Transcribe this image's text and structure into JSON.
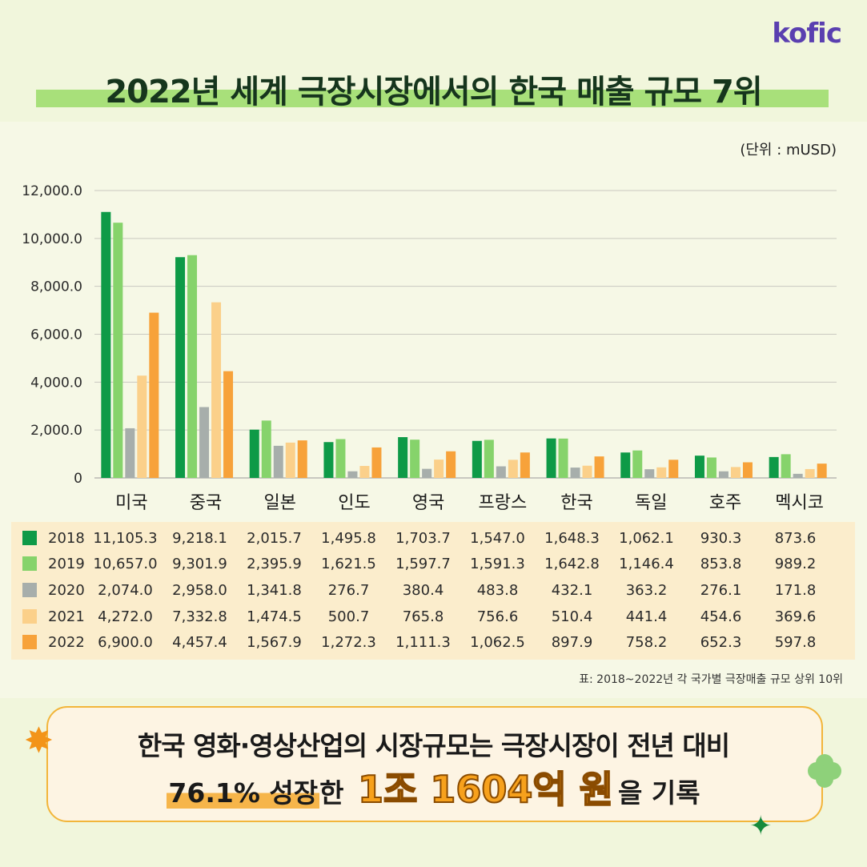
{
  "logo": "kofic",
  "title": "2022년 세계 극장시장에서의 한국 매출 규모 7위",
  "unit_label": "(단위 : mUSD)",
  "caption": "표: 2018~2022년 각 국가별 극장매출 규모 상위 10위",
  "callout": {
    "line1": "한국 영화·영상산업의 시장규모는 극장시장이 전년 대비",
    "highlight": "76.1% 성장",
    "mid": "한",
    "amount": "1조 1604억 원",
    "tail": "을 기록"
  },
  "icons": {
    "sparkle": "sparkle-icon",
    "clover": "clover-icon",
    "star": "four-point-star-icon"
  },
  "chart_data": {
    "type": "bar",
    "categories": [
      "미국",
      "중국",
      "일본",
      "인도",
      "영국",
      "프랑스",
      "한국",
      "독일",
      "호주",
      "멕시코"
    ],
    "series": [
      {
        "name": "2018",
        "color": "#0e9a47",
        "labels": [
          "11,105.3",
          "9,218.1",
          "2,015.7",
          "1,495.8",
          "1,703.7",
          "1,547.0",
          "1,648.3",
          "1,062.1",
          "930.3",
          "873.6"
        ],
        "values": [
          11105.3,
          9218.1,
          2015.7,
          1495.8,
          1703.7,
          1547.0,
          1648.3,
          1062.1,
          930.3,
          873.6
        ]
      },
      {
        "name": "2019",
        "color": "#86d36b",
        "labels": [
          "10,657.0",
          "9,301.9",
          "2,395.9",
          "1,621.5",
          "1,597.7",
          "1,591.3",
          "1,642.8",
          "1,146.4",
          "853.8",
          "989.2"
        ],
        "values": [
          10657.0,
          9301.9,
          2395.9,
          1621.5,
          1597.7,
          1591.3,
          1642.8,
          1146.4,
          853.8,
          989.2
        ]
      },
      {
        "name": "2020",
        "color": "#a7aeab",
        "labels": [
          "2,074.0",
          "2,958.0",
          "1,341.8",
          "276.7",
          "380.4",
          "483.8",
          "432.1",
          "363.2",
          "276.1",
          "171.8"
        ],
        "values": [
          2074.0,
          2958.0,
          1341.8,
          276.7,
          380.4,
          483.8,
          432.1,
          363.2,
          276.1,
          171.8
        ]
      },
      {
        "name": "2021",
        "color": "#fbd08a",
        "labels": [
          "4,272.0",
          "7,332.8",
          "1,474.5",
          "500.7",
          "765.8",
          "756.6",
          "510.4",
          "441.4",
          "454.6",
          "369.6"
        ],
        "values": [
          4272.0,
          7332.8,
          1474.5,
          500.7,
          765.8,
          756.6,
          510.4,
          441.4,
          454.6,
          369.6
        ]
      },
      {
        "name": "2022",
        "color": "#f7a23a",
        "labels": [
          "6,900.0",
          "4,457.4",
          "1,567.9",
          "1,272.3",
          "1,111.3",
          "1,062.5",
          "897.9",
          "758.2",
          "652.3",
          "597.8"
        ],
        "values": [
          6900.0,
          4457.4,
          1567.9,
          1272.3,
          1111.3,
          1062.5,
          897.9,
          758.2,
          652.3,
          597.8
        ]
      }
    ],
    "yticks": [
      "12,000.0",
      "10,000.0",
      "8,000.0",
      "6,000.0",
      "4,000.0",
      "2,000.0",
      "0"
    ],
    "ylim": [
      0,
      12000
    ],
    "grid": true,
    "legend": "table-below"
  }
}
